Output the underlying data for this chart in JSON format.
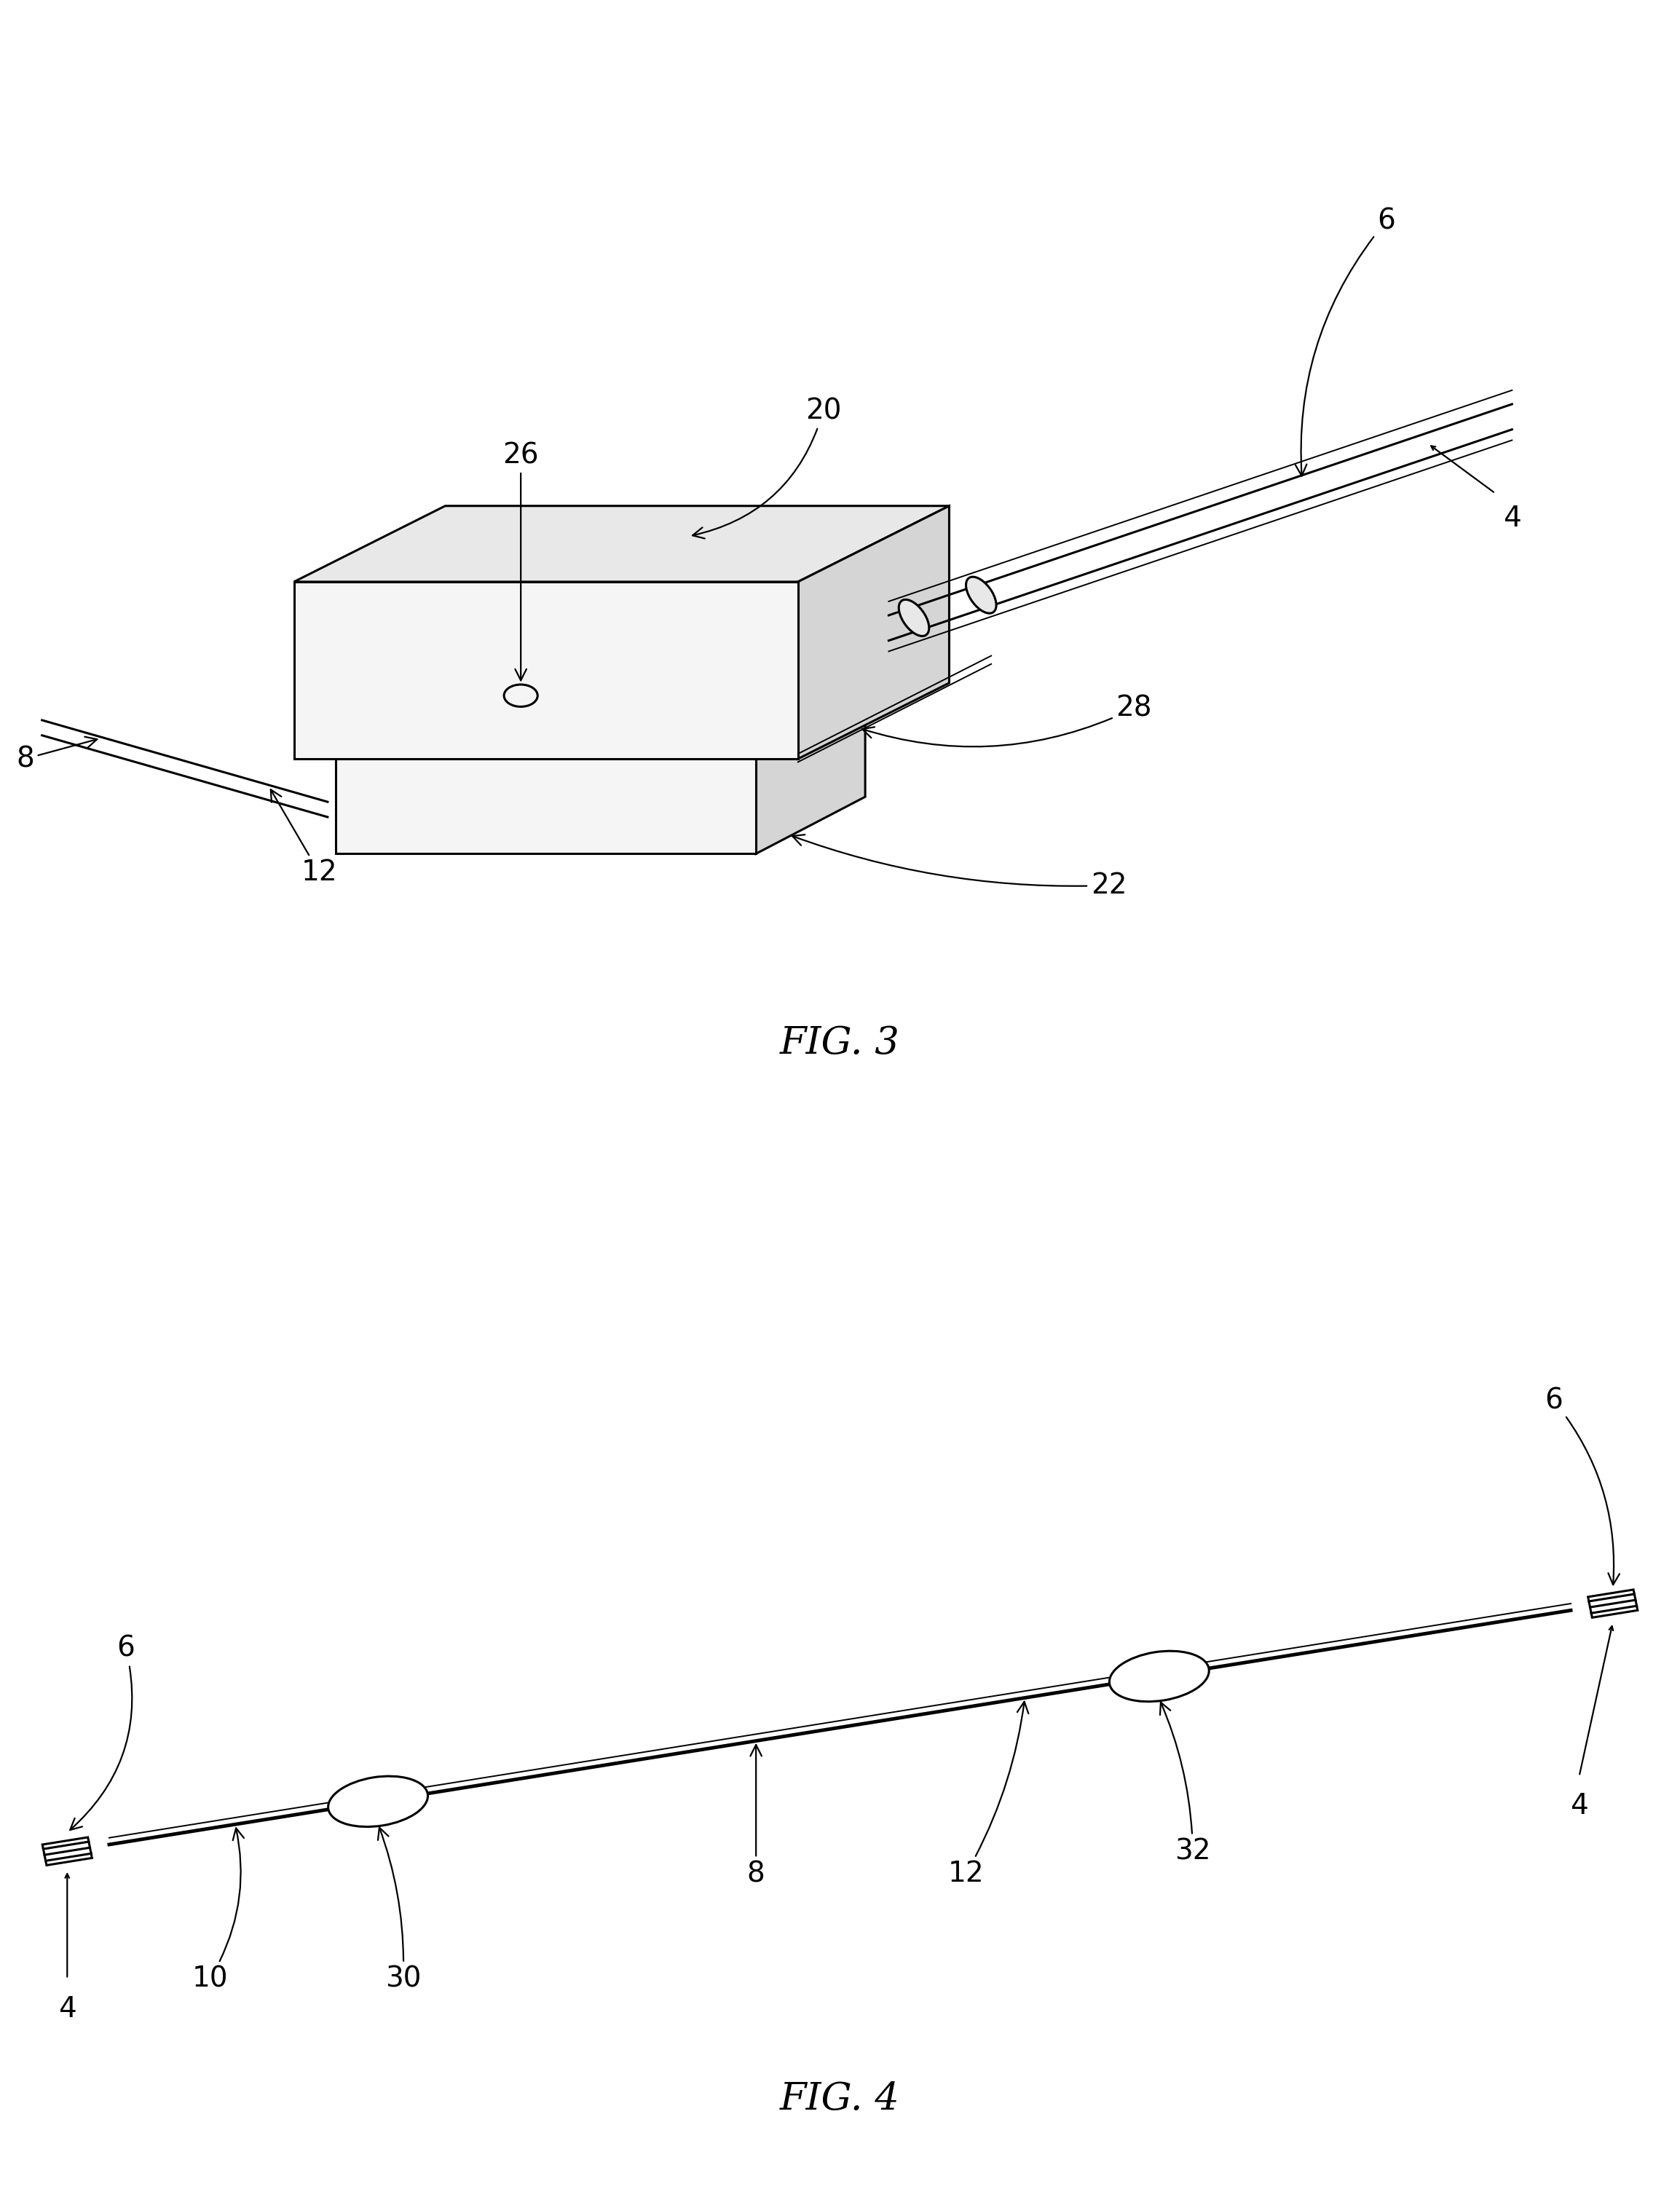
{
  "bg_color": "#ffffff",
  "line_color": "#000000",
  "fig3_label": "FIG. 3",
  "fig4_label": "FIG. 4",
  "label_fontsize": 38,
  "ann_fontsize": 28,
  "lw": 2.2,
  "lw_thick": 3.5,
  "lw_thin": 1.4,
  "face_light": "#f5f5f5",
  "face_mid": "#e8e8e8",
  "face_dark": "#d5d5d5"
}
